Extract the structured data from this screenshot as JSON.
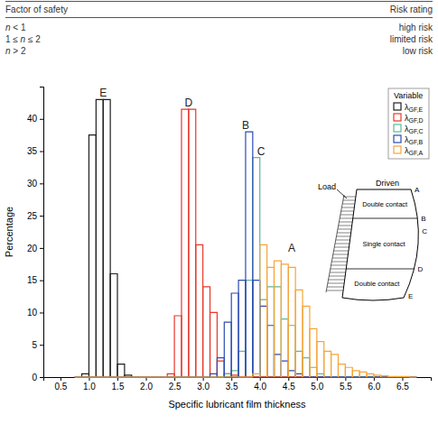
{
  "table": {
    "columns": [
      "Factor of safety",
      "Risk rating"
    ],
    "rows": [
      [
        "n < 1",
        "high risk"
      ],
      [
        "1 ≤ n ≤ 2",
        "limited risk"
      ],
      [
        "n > 2",
        "low risk"
      ]
    ]
  },
  "chart_data": {
    "type": "histogram",
    "xlabel": "Specific lubricant film thickness",
    "ylabel": "Percentage",
    "xlim": [
      0.2,
      7
    ],
    "ylim": [
      0,
      45
    ],
    "xticks": [
      0.5,
      {
        "value": 1,
        "label": "1.0"
      },
      1.5,
      {
        "value": 2,
        "label": "2.0"
      },
      2.5,
      {
        "value": 3,
        "label": "3.0"
      },
      3.5,
      {
        "value": 4,
        "label": "4.0"
      },
      4.5,
      {
        "value": 5,
        "label": "5.0"
      },
      5.5,
      {
        "value": 6,
        "label": "6.0"
      },
      6.5
    ],
    "yticks": [
      0,
      5,
      10,
      15,
      20,
      25,
      30,
      35,
      40
    ],
    "bins": [
      0.75,
      0.875,
      1,
      1.125,
      1.25,
      1.375,
      1.5,
      1.625,
      1.75,
      1.875,
      2,
      2.125,
      2.25,
      2.375,
      2.5,
      2.625,
      2.75,
      2.875,
      3,
      3.125,
      3.25,
      3.375,
      3.5,
      3.625,
      3.75,
      3.875,
      4,
      4.125,
      4.25,
      4.375,
      4.5,
      4.625,
      4.75,
      4.875,
      5,
      5.125,
      5.25,
      5.375,
      5.5,
      5.625,
      5.75,
      5.875,
      6,
      6.125,
      6.25,
      6.375,
      6.5,
      6.625,
      6.75
    ],
    "series": [
      {
        "name": "λGF,E",
        "color": "#1f1f1f",
        "values": [
          0,
          0.5,
          37.5,
          43,
          43,
          16,
          2,
          0.3,
          0,
          0,
          0,
          0,
          0,
          0,
          0,
          0,
          0,
          0,
          0,
          0,
          0,
          0,
          0,
          0,
          0,
          0,
          0,
          0,
          0,
          0,
          0,
          0,
          0,
          0,
          0,
          0,
          0,
          0,
          0,
          0,
          0,
          0,
          0,
          0,
          0,
          0,
          0,
          0
        ]
      },
      {
        "name": "λGF,D",
        "color": "#e8372a",
        "values": [
          0,
          0,
          0,
          0,
          0,
          0,
          0,
          0,
          0,
          0,
          0,
          0,
          0,
          0.5,
          9.5,
          41.5,
          41.5,
          20.5,
          14,
          10,
          2.5,
          0.5,
          0.3,
          0,
          0,
          0,
          0,
          0,
          0,
          0,
          0,
          0,
          0,
          0,
          0,
          0,
          0,
          0,
          0,
          0,
          0,
          0,
          0,
          0,
          0,
          0,
          0,
          0
        ]
      },
      {
        "name": "λGF,C",
        "color": "#5fb894",
        "values": [
          0,
          0,
          0,
          0,
          0,
          0,
          0,
          0,
          0,
          0,
          0,
          0,
          0,
          0,
          0,
          0,
          0,
          0,
          0,
          0,
          0,
          0.5,
          1,
          4,
          15,
          34,
          12,
          14,
          14,
          9,
          8,
          4,
          3,
          1.5,
          0.5,
          0,
          0,
          0,
          0,
          0,
          0,
          0,
          0,
          0,
          0,
          0,
          0,
          0
        ]
      },
      {
        "name": "λGF,B",
        "color": "#2b4bb5",
        "values": [
          0,
          0,
          0,
          0,
          0,
          0,
          0,
          0,
          0,
          0,
          0,
          0,
          0,
          0,
          0,
          0,
          0,
          0,
          0,
          0.5,
          3,
          8.5,
          13,
          15,
          38,
          15,
          11,
          8,
          3.5,
          2.5,
          1,
          0.5,
          0,
          0,
          0,
          0,
          0,
          0,
          0,
          0,
          0,
          0,
          0,
          0,
          0,
          0,
          0,
          0
        ]
      },
      {
        "name": "λGF,A",
        "color": "#f5a53a",
        "values": [
          0,
          0,
          0,
          0,
          0,
          0,
          0,
          0,
          0,
          0,
          0,
          0,
          0,
          0,
          0,
          0,
          0,
          0,
          0,
          0,
          0,
          0,
          0,
          0,
          0,
          0.5,
          20.5,
          17,
          18,
          17.5,
          17,
          13.5,
          11,
          7.5,
          5.5,
          4,
          3.5,
          2,
          1.5,
          1,
          0.8,
          0.5,
          0.3,
          0.2,
          0.1,
          0.1,
          0.1,
          0
        ]
      }
    ],
    "legend": "top-right",
    "legend_title": "Variable",
    "annotations": [
      {
        "text": "E",
        "x": 1.25,
        "y": 43
      },
      {
        "text": "D",
        "x": 2.75,
        "y": 41.5
      },
      {
        "text": "B",
        "x": 3.75,
        "y": 38
      },
      {
        "text": "C",
        "x": 4.02,
        "y": 34
      },
      {
        "text": "A",
        "x": 4.56,
        "y": 19
      }
    ],
    "inset": {
      "load": "Load",
      "driven": "Driven",
      "zones": [
        "Double contact",
        "Single contact",
        "Double contact"
      ],
      "points": [
        "A",
        "B",
        "C",
        "D",
        "E"
      ]
    }
  }
}
